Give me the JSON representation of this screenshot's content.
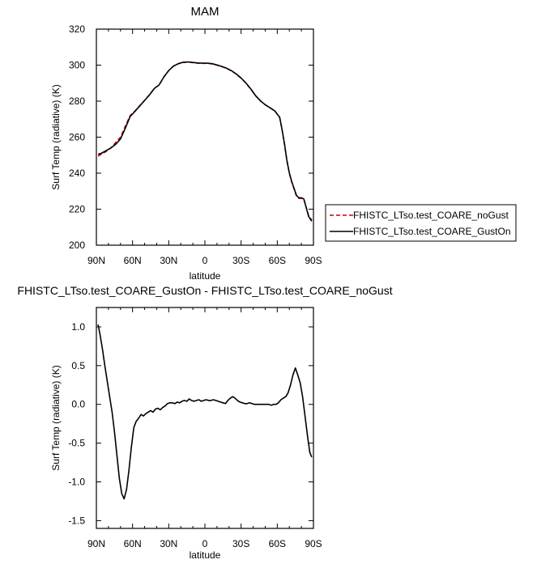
{
  "chart_data": [
    {
      "type": "line",
      "title": "MAM",
      "xlabel": "latitude",
      "ylabel": "Surf Temp (radiative) (K)",
      "xlim": [
        90,
        -90
      ],
      "ylim": [
        200,
        320
      ],
      "x_ticks": [
        90,
        60,
        30,
        0,
        -30,
        -60,
        -90
      ],
      "x_tick_labels": [
        "90N",
        "60N",
        "30N",
        "0",
        "30S",
        "60S",
        "90S"
      ],
      "y_ticks": [
        200,
        220,
        240,
        260,
        280,
        300,
        320
      ],
      "y_tick_labels": [
        "200",
        "220",
        "240",
        "260",
        "280",
        "300",
        "320"
      ],
      "legend_position": "right",
      "series": [
        {
          "name": "FHISTC_LTso.test_COARE_noGust",
          "color": "#cc0000",
          "dash": "dashed",
          "x": [
            88.6,
            86,
            82,
            78,
            74,
            70,
            66,
            62,
            58,
            54,
            50,
            46,
            42,
            38,
            34,
            30,
            26,
            22,
            18,
            14,
            10,
            6,
            2,
            -2,
            -6,
            -10,
            -14,
            -18,
            -22,
            -26,
            -30,
            -34,
            -38,
            -42,
            -46,
            -50,
            -54,
            -58,
            -62,
            -64,
            -66,
            -68,
            -70,
            -72,
            -74,
            -76,
            -78,
            -80,
            -82,
            -84,
            -86,
            -88.6
          ],
          "y": [
            249.5,
            250.5,
            252,
            254,
            257,
            260,
            266,
            272,
            274.5,
            277.5,
            280.5,
            283.5,
            287,
            289,
            293.5,
            297,
            299.5,
            300.8,
            301.5,
            301.7,
            301.4,
            301.1,
            301.0,
            301.0,
            300.7,
            300.0,
            299.2,
            298.2,
            296.8,
            295,
            292.7,
            290,
            286.7,
            283,
            280.2,
            278,
            276.3,
            274.5,
            271,
            264,
            256,
            247,
            240,
            235,
            231,
            227,
            226,
            226,
            225.5,
            221,
            216.5,
            214
          ]
        },
        {
          "name": "FHISTC_LTso.test_COARE_GustOn",
          "color": "#000000",
          "dash": "solid",
          "x": [
            88.6,
            86,
            82,
            78,
            74,
            70,
            66,
            62,
            58,
            54,
            50,
            46,
            42,
            38,
            34,
            30,
            26,
            22,
            18,
            14,
            10,
            6,
            2,
            -2,
            -6,
            -10,
            -14,
            -18,
            -22,
            -26,
            -30,
            -34,
            -38,
            -42,
            -46,
            -50,
            -54,
            -58,
            -62,
            -64,
            -66,
            -68,
            -70,
            -72,
            -74,
            -76,
            -78,
            -80,
            -82,
            -84,
            -86,
            -88.6
          ],
          "y": [
            250.5,
            251,
            252.5,
            254,
            256,
            259,
            265,
            271.5,
            274.3,
            277.4,
            280.4,
            283.4,
            287,
            289,
            293.5,
            297,
            299.5,
            300.8,
            301.6,
            301.8,
            301.5,
            301.2,
            301.1,
            301.1,
            300.8,
            300.1,
            299.3,
            298.3,
            296.9,
            295.1,
            292.8,
            290.1,
            286.8,
            283.1,
            280.2,
            278,
            276.3,
            274.5,
            271,
            264.1,
            256.1,
            247.1,
            240.2,
            235.3,
            231.4,
            227.5,
            226.4,
            226.3,
            225.7,
            220.8,
            216,
            213.3
          ]
        }
      ]
    },
    {
      "type": "line",
      "title": "FHISTC_LTso.test_COARE_GustOn - FHISTC_LTso.test_COARE_noGust",
      "xlabel": "latitude",
      "ylabel": "Surf Temp (radiative) (K)",
      "xlim": [
        90,
        -90
      ],
      "ylim": [
        -1.6,
        1.25
      ],
      "x_ticks": [
        90,
        60,
        30,
        0,
        -30,
        -60,
        -90
      ],
      "x_tick_labels": [
        "90N",
        "60N",
        "30N",
        "0",
        "30S",
        "60S",
        "90S"
      ],
      "y_ticks": [
        -1.5,
        -1.0,
        -0.5,
        0.0,
        0.5,
        1.0
      ],
      "y_tick_labels": [
        "-1.5",
        "-1.0",
        "-0.5",
        "0.0",
        "0.5",
        "1.0"
      ],
      "series": [
        {
          "color": "#000000",
          "dash": "solid",
          "x": [
            88.6,
            87,
            85,
            83,
            81,
            79,
            77,
            75,
            73,
            71,
            69,
            67,
            65,
            63,
            61,
            59,
            57,
            55,
            53,
            51,
            49,
            47,
            45,
            43,
            41,
            39,
            37,
            35,
            33,
            31,
            29,
            27,
            25,
            23,
            21,
            19,
            17,
            15,
            13,
            11,
            9,
            7,
            5,
            3,
            1,
            -1,
            -3,
            -5,
            -7,
            -9,
            -11,
            -13,
            -15,
            -17,
            -19,
            -21,
            -23,
            -25,
            -27,
            -29,
            -31,
            -33,
            -35,
            -37,
            -39,
            -41,
            -43,
            -45,
            -47,
            -49,
            -51,
            -53,
            -55,
            -57,
            -59,
            -61,
            -63,
            -65,
            -67,
            -69,
            -71,
            -73,
            -75,
            -77,
            -79,
            -81,
            -83,
            -85,
            -87,
            -88.6
          ],
          "y": [
            1.03,
            0.9,
            0.72,
            0.5,
            0.3,
            0.1,
            -0.1,
            -0.35,
            -0.65,
            -0.95,
            -1.15,
            -1.22,
            -1.1,
            -0.85,
            -0.55,
            -0.3,
            -0.22,
            -0.18,
            -0.13,
            -0.15,
            -0.12,
            -0.1,
            -0.08,
            -0.1,
            -0.06,
            -0.05,
            -0.07,
            -0.04,
            -0.02,
            0.01,
            0.02,
            0.02,
            0.01,
            0.03,
            0.02,
            0.04,
            0.05,
            0.04,
            0.07,
            0.05,
            0.04,
            0.05,
            0.06,
            0.04,
            0.05,
            0.06,
            0.05,
            0.05,
            0.06,
            0.05,
            0.04,
            0.03,
            0.02,
            0.01,
            0.05,
            0.08,
            0.1,
            0.08,
            0.05,
            0.03,
            0.02,
            0.01,
            0.01,
            0.02,
            0.01,
            0.0,
            0.0,
            0.0,
            0.0,
            0.0,
            0.0,
            0.0,
            -0.01,
            0.0,
            0.0,
            0.02,
            0.06,
            0.08,
            0.1,
            0.15,
            0.25,
            0.38,
            0.47,
            0.38,
            0.28,
            0.1,
            -0.15,
            -0.4,
            -0.62,
            -0.68
          ]
        }
      ]
    }
  ]
}
